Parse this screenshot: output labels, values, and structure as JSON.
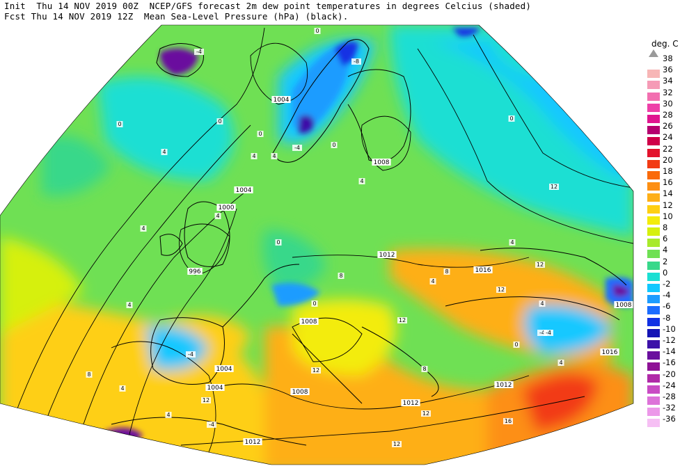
{
  "header": {
    "line1": "Init  Thu 14 NOV 2019 00Z  NCEP/GFS forecast 2m dew point temperatures in degrees Celcius (shaded)",
    "line2": "Fcst Thu 14 NOV 2019 12Z  Mean Sea-Level Pressure (hPa) (black)."
  },
  "legend": {
    "title": "deg. C",
    "levels": [
      {
        "label": "38",
        "color": ""
      },
      {
        "label": "36",
        "color": "#f7b6b6"
      },
      {
        "label": "34",
        "color": "#f59bb6"
      },
      {
        "label": "32",
        "color": "#f26fb0"
      },
      {
        "label": "30",
        "color": "#ee3fa8"
      },
      {
        "label": "28",
        "color": "#e0158f"
      },
      {
        "label": "26",
        "color": "#b5006f"
      },
      {
        "label": "24",
        "color": "#cf0049"
      },
      {
        "label": "22",
        "color": "#e3132c"
      },
      {
        "label": "20",
        "color": "#f23b14"
      },
      {
        "label": "18",
        "color": "#fa6a0a"
      },
      {
        "label": "16",
        "color": "#fd8f13"
      },
      {
        "label": "14",
        "color": "#feaf18"
      },
      {
        "label": "12",
        "color": "#fecf12"
      },
      {
        "label": "10",
        "color": "#f3ec0a"
      },
      {
        "label": "8",
        "color": "#d6f00c"
      },
      {
        "label": "6",
        "color": "#a8ea2a"
      },
      {
        "label": "4",
        "color": "#6fe054"
      },
      {
        "label": "2",
        "color": "#38d88a"
      },
      {
        "label": "0",
        "color": "#1bdfd3"
      },
      {
        "label": "-2",
        "color": "#12c8ff"
      },
      {
        "label": "-4",
        "color": "#1d9cff"
      },
      {
        "label": "-6",
        "color": "#1c6cff"
      },
      {
        "label": "-8",
        "color": "#1232e4"
      },
      {
        "label": "-10",
        "color": "#1414b5"
      },
      {
        "label": "-12",
        "color": "#3d11a8"
      },
      {
        "label": "-14",
        "color": "#6a0f9e"
      },
      {
        "label": "-16",
        "color": "#8e1296"
      },
      {
        "label": "-20",
        "color": "#b02aa8"
      },
      {
        "label": "-24",
        "color": "#c94bc4"
      },
      {
        "label": "-28",
        "color": "#dd72d9"
      },
      {
        "label": "-32",
        "color": "#ec98e9"
      },
      {
        "label": "-36",
        "color": "#f6bff4"
      }
    ]
  },
  "isobar_labels": [
    "1004",
    "1004",
    "1000",
    "996",
    "1008",
    "1012",
    "1016",
    "1008",
    "1004",
    "1004",
    "1008",
    "1012",
    "1012",
    "1012",
    "1016",
    "1008"
  ],
  "temp_labels": [
    "-4",
    "0",
    "-8",
    "-4",
    "0",
    "4",
    "4",
    "0",
    "4",
    "0",
    "4",
    "4",
    "4",
    "0",
    "4",
    "0",
    "8",
    "4",
    "12",
    "4",
    "-4",
    "12",
    "12",
    "8",
    "12",
    "0",
    "-4",
    "4",
    "8",
    "12",
    "16",
    "-4",
    "0",
    "4",
    "12",
    "12",
    "0",
    "4",
    "-4",
    "8",
    "4",
    "12"
  ]
}
